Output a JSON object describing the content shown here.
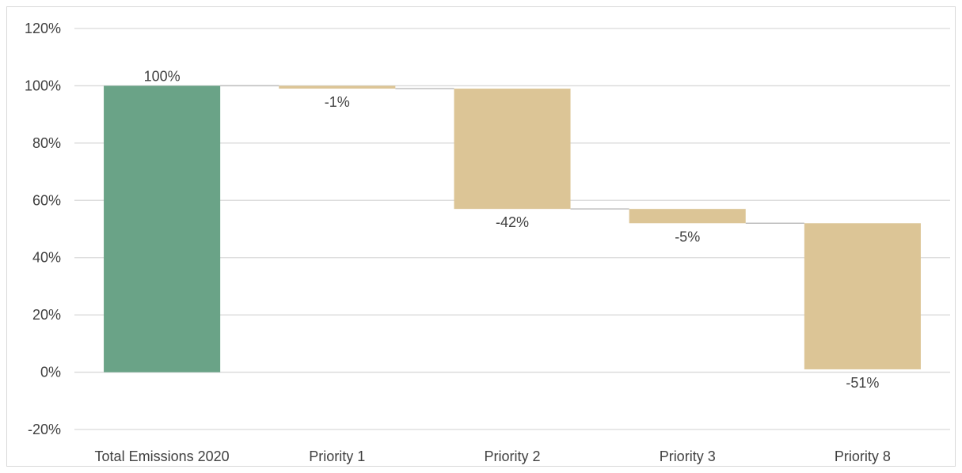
{
  "chart_data": {
    "type": "bar",
    "subtype": "waterfall",
    "title": "",
    "xlabel": "",
    "ylabel": "",
    "categories": [
      "Total Emissions 2020",
      "Priority 1",
      "Priority 2",
      "Priority 3",
      "Priority 8"
    ],
    "values": [
      100,
      -1,
      -42,
      -5,
      -51
    ],
    "data_labels": [
      "100%",
      "-1%",
      "-42%",
      "-5%",
      "-51%"
    ],
    "ylim": [
      -20,
      120
    ],
    "yticks": [
      -20,
      0,
      20,
      40,
      60,
      80,
      100,
      120
    ],
    "ytick_labels": [
      "-20%",
      "0%",
      "20%",
      "40%",
      "60%",
      "80%",
      "100%",
      "120%"
    ],
    "grid": true,
    "legend": "none",
    "colors": {
      "total": "#6aa387",
      "decrease": "#dcc596",
      "grid": "#d9d9d9",
      "connector": "#bfbfbf",
      "text": "#404040"
    }
  }
}
